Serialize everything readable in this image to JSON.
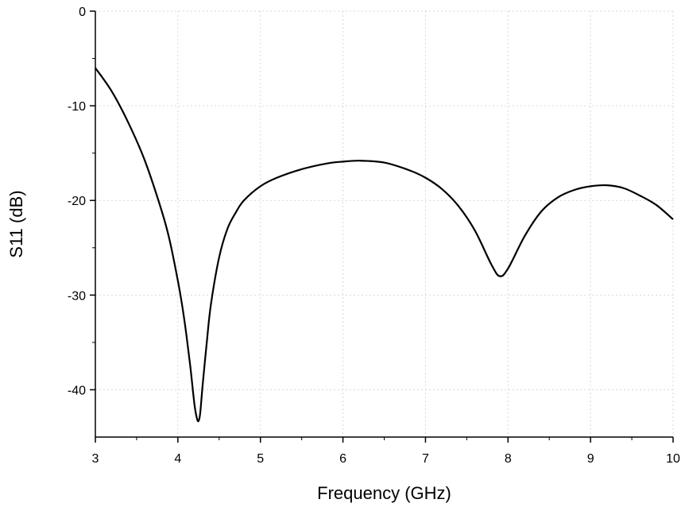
{
  "chart_data": {
    "type": "line",
    "xlabel": "Frequency (GHz)",
    "ylabel": "S11 (dB)",
    "xlim": [
      3,
      10
    ],
    "ylim": [
      -45,
      0
    ],
    "xticks": [
      "3",
      "4",
      "5",
      "6",
      "7",
      "8",
      "9",
      "10"
    ],
    "yticks": [
      "0",
      "-10",
      "-20",
      "-30",
      "-40"
    ],
    "grid": true,
    "legend": "none",
    "series": [
      {
        "color": "#000000",
        "x": [
          3.0,
          3.2,
          3.4,
          3.6,
          3.8,
          3.9,
          4.0,
          4.05,
          4.1,
          4.15,
          4.2,
          4.23,
          4.25,
          4.27,
          4.3,
          4.35,
          4.4,
          4.5,
          4.6,
          4.7,
          4.8,
          5.0,
          5.2,
          5.5,
          5.8,
          6.0,
          6.2,
          6.5,
          6.8,
          7.0,
          7.2,
          7.4,
          7.6,
          7.8,
          7.9,
          8.0,
          8.2,
          8.4,
          8.6,
          8.8,
          9.0,
          9.2,
          9.4,
          9.6,
          9.8,
          10.0
        ],
        "y": [
          -6.0,
          -8.5,
          -11.8,
          -15.8,
          -21.0,
          -24.2,
          -28.5,
          -31.0,
          -34.0,
          -37.5,
          -41.5,
          -43.0,
          -43.3,
          -42.5,
          -39.5,
          -35.0,
          -31.0,
          -26.0,
          -23.0,
          -21.3,
          -20.0,
          -18.5,
          -17.6,
          -16.7,
          -16.1,
          -15.9,
          -15.8,
          -16.0,
          -16.8,
          -17.6,
          -18.8,
          -20.6,
          -23.2,
          -26.8,
          -28.0,
          -27.2,
          -23.8,
          -21.2,
          -19.7,
          -18.9,
          -18.5,
          -18.4,
          -18.7,
          -19.5,
          -20.5,
          -22.0
        ]
      }
    ]
  }
}
